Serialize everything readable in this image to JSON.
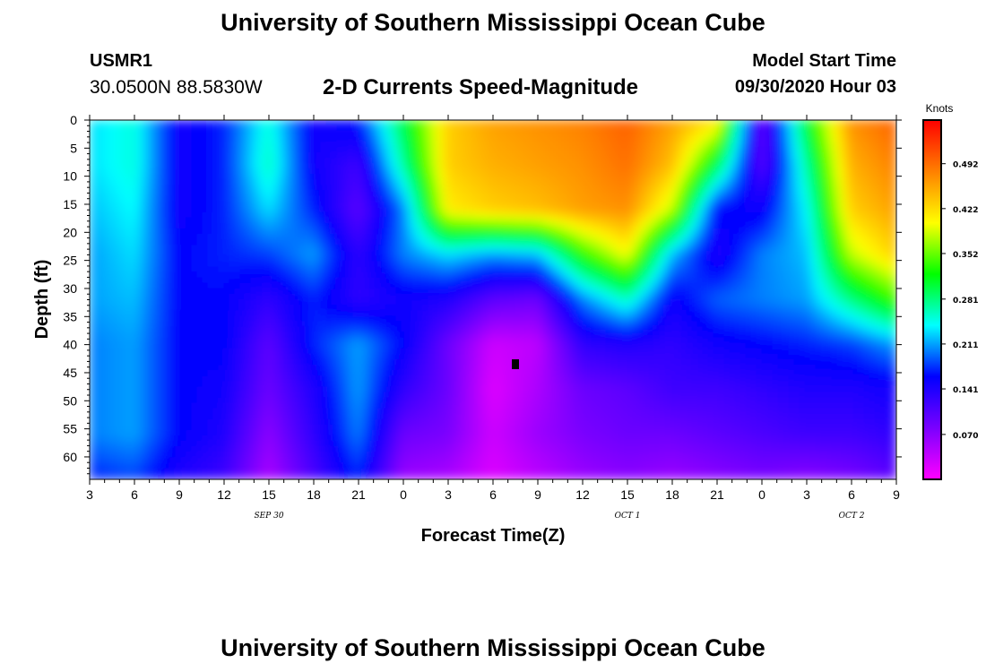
{
  "header": {
    "title": "University of Southern Mississippi Ocean Cube",
    "station_id": "USMR1",
    "coords": "30.0500N 88.5830W",
    "chart_title": "2-D Currents Speed-Magnitude",
    "model_label": "Model Start Time",
    "model_start": "09/30/2020 Hour 03"
  },
  "footer": {
    "title": "University of Southern Mississippi Ocean Cube"
  },
  "chart_data": {
    "type": "heatmap",
    "title": "2-D Currents Speed-Magnitude",
    "xlabel": "Forecast Time(Z)",
    "ylabel": "Depth (ft)",
    "x_ticks": [
      "3",
      "6",
      "9",
      "12",
      "15",
      "18",
      "21",
      "0",
      "3",
      "6",
      "9",
      "12",
      "15",
      "18",
      "21",
      "0",
      "3",
      "6",
      "9"
    ],
    "date_labels": [
      "SEP 30",
      "OCT 1",
      "OCT 2"
    ],
    "x_range_hours": [
      3,
      57
    ],
    "y_ticks": [
      "0",
      "5",
      "10",
      "15",
      "20",
      "25",
      "30",
      "35",
      "40",
      "45",
      "50",
      "55",
      "60"
    ],
    "y_range_ft": [
      0,
      64
    ],
    "colorbar": {
      "unit": "Knots",
      "tick_labels": [
        "0.492",
        "0.422",
        "0.352",
        "0.281",
        "0.211",
        "0.141",
        "0.070"
      ],
      "range": [
        0.0,
        0.56
      ],
      "colors": [
        "#ff00ff",
        "#7a00ff",
        "#0000ff",
        "#00ffff",
        "#00ff00",
        "#ffff00",
        "#ff8000",
        "#ff0000"
      ]
    },
    "depth_levels_ft": [
      0,
      8,
      16,
      24,
      32,
      40,
      48,
      56,
      64
    ],
    "time_columns_hours": [
      3,
      6,
      9,
      12,
      15,
      18,
      21,
      24,
      27,
      30,
      33,
      36,
      39,
      42,
      45,
      48,
      51,
      54,
      57
    ],
    "speed_knots": [
      [
        0.23,
        0.25,
        0.15,
        0.17,
        0.25,
        0.15,
        0.17,
        0.3,
        0.43,
        0.46,
        0.47,
        0.48,
        0.5,
        0.46,
        0.42,
        0.09,
        0.31,
        0.47,
        0.5
      ],
      [
        0.23,
        0.25,
        0.15,
        0.17,
        0.26,
        0.15,
        0.12,
        0.27,
        0.43,
        0.45,
        0.46,
        0.47,
        0.49,
        0.44,
        0.3,
        0.1,
        0.27,
        0.45,
        0.48
      ],
      [
        0.22,
        0.24,
        0.15,
        0.17,
        0.23,
        0.17,
        0.1,
        0.2,
        0.41,
        0.43,
        0.44,
        0.46,
        0.47,
        0.38,
        0.16,
        0.15,
        0.24,
        0.43,
        0.46
      ],
      [
        0.21,
        0.23,
        0.16,
        0.17,
        0.18,
        0.21,
        0.13,
        0.2,
        0.23,
        0.21,
        0.22,
        0.33,
        0.4,
        0.22,
        0.14,
        0.2,
        0.22,
        0.38,
        0.43
      ],
      [
        0.21,
        0.22,
        0.16,
        0.16,
        0.13,
        0.17,
        0.13,
        0.15,
        0.14,
        0.1,
        0.09,
        0.2,
        0.26,
        0.15,
        0.19,
        0.2,
        0.21,
        0.28,
        0.34
      ],
      [
        0.2,
        0.21,
        0.16,
        0.16,
        0.1,
        0.17,
        0.21,
        0.16,
        0.09,
        0.03,
        0.04,
        0.13,
        0.14,
        0.13,
        0.15,
        0.16,
        0.17,
        0.18,
        0.21
      ],
      [
        0.2,
        0.21,
        0.16,
        0.15,
        0.09,
        0.14,
        0.21,
        0.13,
        0.09,
        0.02,
        0.05,
        0.09,
        0.1,
        0.12,
        0.12,
        0.13,
        0.14,
        0.14,
        0.15
      ],
      [
        0.2,
        0.21,
        0.16,
        0.14,
        0.07,
        0.13,
        0.2,
        0.09,
        0.08,
        0.03,
        0.06,
        0.08,
        0.09,
        0.09,
        0.1,
        0.11,
        0.12,
        0.12,
        0.13
      ],
      [
        0.17,
        0.18,
        0.14,
        0.12,
        0.05,
        0.11,
        0.17,
        0.06,
        0.05,
        0.02,
        0.04,
        0.06,
        0.07,
        0.06,
        0.07,
        0.08,
        0.07,
        0.08,
        0.1
      ]
    ]
  }
}
